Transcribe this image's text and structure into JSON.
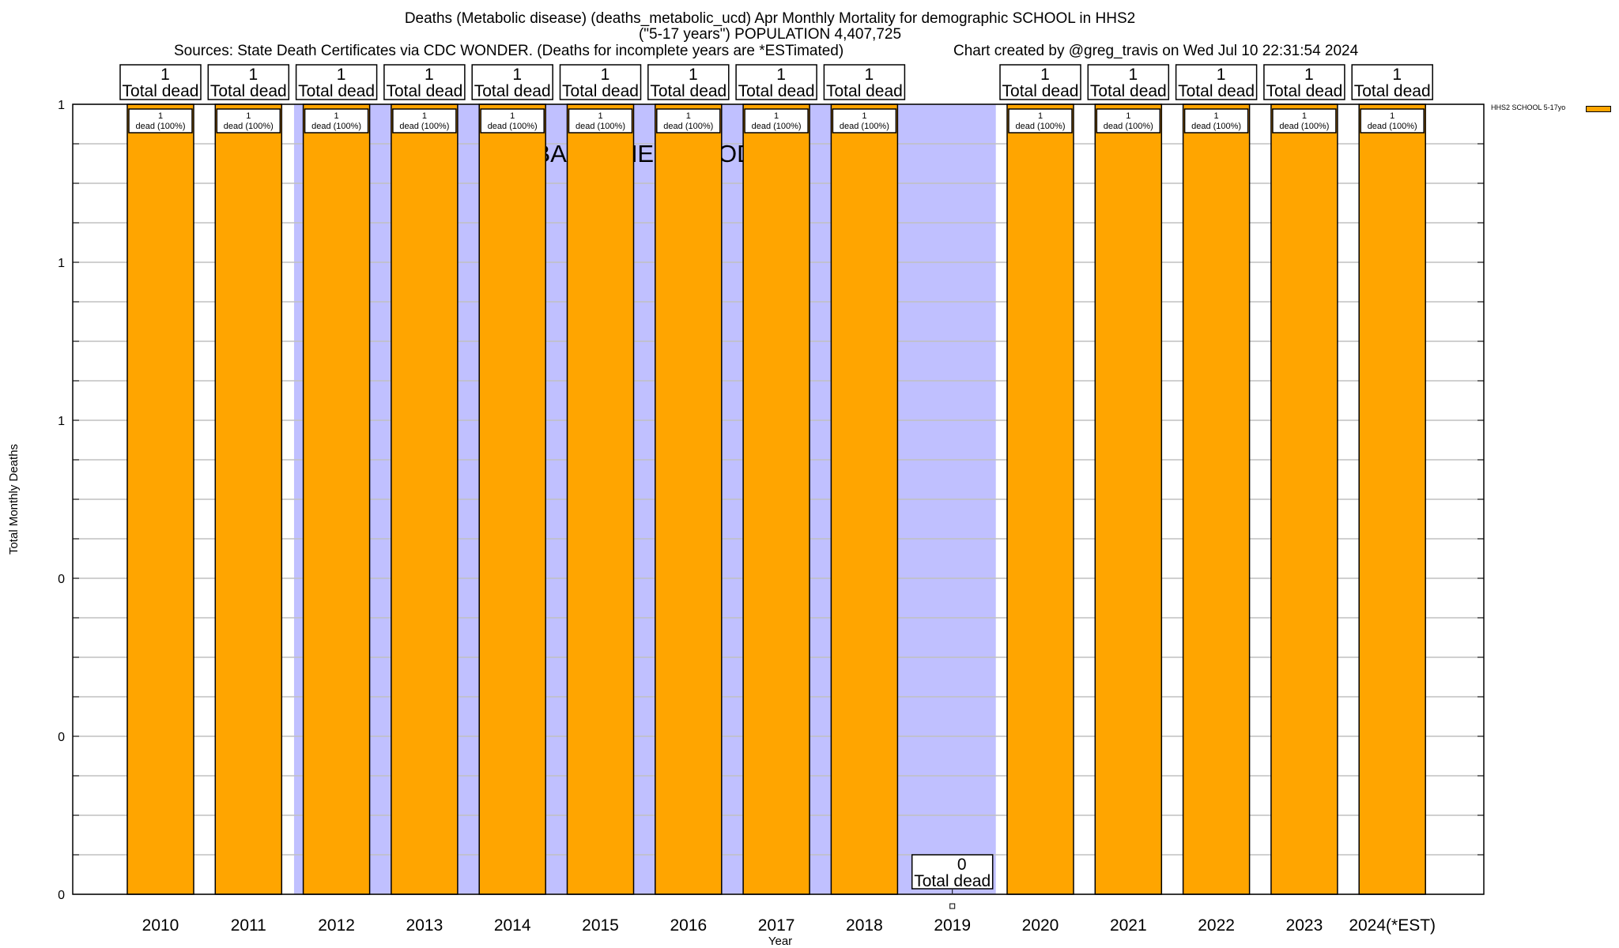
{
  "chart_data": {
    "type": "bar",
    "title": "Deaths (Metabolic disease) (deaths_metabolic_ucd) Apr Monthly Mortality for demographic SCHOOL in HHS2",
    "subtitle": "(\"5-17 years\") POPULATION 4,407,725",
    "sources": "Sources: State Death Certificates via CDC WONDER. (Deaths for incomplete years are *ESTimated)",
    "credit": "Chart created by @greg_travis on Wed Jul 10 22:31:54 2024",
    "xlabel": "Year",
    "ylabel": "Total Monthly Deaths",
    "ylim": [
      0,
      1
    ],
    "yticks": [
      {
        "value": 0,
        "label": "0"
      },
      {
        "value": 0.2,
        "label": "0"
      },
      {
        "value": 0.4,
        "label": "0"
      },
      {
        "value": 0.6,
        "label": "1"
      },
      {
        "value": 0.8,
        "label": "1"
      },
      {
        "value": 1.0,
        "label": "1"
      }
    ],
    "minor_grid_step": 0.05,
    "grid": true,
    "categories": [
      "2010",
      "2011",
      "2012",
      "2013",
      "2014",
      "2015",
      "2016",
      "2017",
      "2018",
      "2019",
      "2020",
      "2021",
      "2022",
      "2023",
      "2024(*EST)"
    ],
    "series": [
      {
        "name": "HHS2 SCHOOL 5-17yo",
        "color": "#ffa500",
        "values": [
          1,
          1,
          1,
          1,
          1,
          1,
          1,
          1,
          1,
          0,
          1,
          1,
          1,
          1,
          1
        ],
        "total_labels": [
          "1",
          "1",
          "1",
          "1",
          "1",
          "1",
          "1",
          "1",
          "1",
          "0",
          "1",
          "1",
          "1",
          "1",
          "1"
        ],
        "inner_labels": [
          "1",
          "1",
          "1",
          "1",
          "1",
          "1",
          "1",
          "1",
          "1",
          "",
          "1",
          "1",
          "1",
          "1",
          "1"
        ]
      }
    ],
    "total_label_suffix": "Total dead",
    "inner_label_suffix": "dead (100%)",
    "baseline": {
      "label": "BASELINE PERIOD",
      "start_category": "2012",
      "end_category": "2019",
      "color": "#c0c0ff"
    },
    "legend": {
      "placement": "top-right",
      "label": "HHS2 SCHOOL 5-17yo"
    }
  }
}
